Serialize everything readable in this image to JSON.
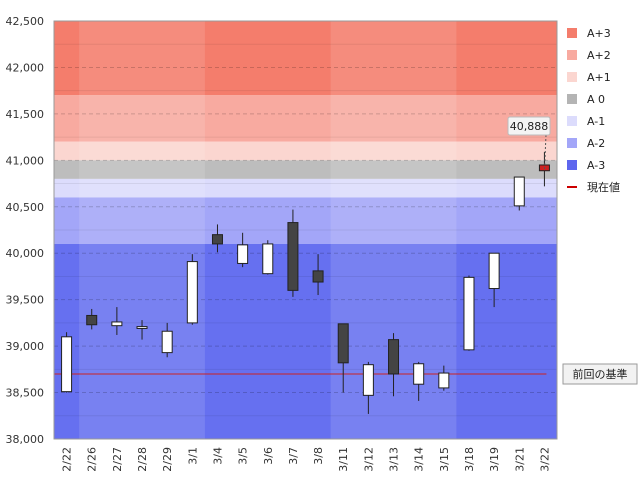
{
  "chart_data": {
    "type": "candlestick",
    "ylim": [
      38000,
      42500
    ],
    "yticks": [
      "38,000",
      "38,500",
      "39,000",
      "39,500",
      "40,000",
      "40,500",
      "41,000",
      "41,500",
      "42,000",
      "42,500"
    ],
    "yticks_values": [
      38000,
      38500,
      39000,
      39500,
      40000,
      40500,
      41000,
      41500,
      42000,
      42500
    ],
    "categories": [
      "2/22",
      "2/26",
      "2/27",
      "2/28",
      "2/29",
      "3/1",
      "3/4",
      "3/5",
      "3/6",
      "3/7",
      "3/8",
      "3/11",
      "3/12",
      "3/13",
      "3/14",
      "3/15",
      "3/18",
      "3/19",
      "3/21",
      "3/22"
    ],
    "candles": [
      {
        "date": "2/22",
        "open": 38510,
        "high": 39150,
        "low": 38500,
        "close": 39100
      },
      {
        "date": "2/26",
        "open": 39330,
        "high": 39400,
        "low": 39180,
        "close": 39230
      },
      {
        "date": "2/27",
        "open": 39220,
        "high": 39420,
        "low": 39120,
        "close": 39260
      },
      {
        "date": "2/28",
        "open": 39190,
        "high": 39280,
        "low": 39070,
        "close": 39210
      },
      {
        "date": "2/29",
        "open": 38930,
        "high": 39250,
        "low": 38880,
        "close": 39160
      },
      {
        "date": "3/1",
        "open": 39250,
        "high": 39990,
        "low": 39230,
        "close": 39910
      },
      {
        "date": "3/4",
        "open": 40200,
        "high": 40310,
        "low": 40010,
        "close": 40100
      },
      {
        "date": "3/5",
        "open": 39890,
        "high": 40220,
        "low": 39850,
        "close": 40090
      },
      {
        "date": "3/6",
        "open": 39780,
        "high": 40140,
        "low": 39770,
        "close": 40100
      },
      {
        "date": "3/7",
        "open": 40330,
        "high": 40470,
        "low": 39530,
        "close": 39600
      },
      {
        "date": "3/8",
        "open": 39810,
        "high": 39990,
        "low": 39550,
        "close": 39690
      },
      {
        "date": "3/11",
        "open": 39240,
        "high": 39240,
        "low": 38500,
        "close": 38820
      },
      {
        "date": "3/12",
        "open": 38470,
        "high": 38830,
        "low": 38270,
        "close": 38800
      },
      {
        "date": "3/13",
        "open": 39070,
        "high": 39140,
        "low": 38460,
        "close": 38700
      },
      {
        "date": "3/14",
        "open": 38590,
        "high": 38830,
        "low": 38410,
        "close": 38810
      },
      {
        "date": "3/15",
        "open": 38550,
        "high": 38790,
        "low": 38520,
        "close": 38710
      },
      {
        "date": "3/18",
        "open": 38960,
        "high": 39760,
        "low": 38950,
        "close": 39740
      },
      {
        "date": "3/19",
        "open": 39620,
        "high": 40000,
        "low": 39420,
        "close": 40000
      },
      {
        "date": "3/21",
        "open": 40510,
        "high": 40820,
        "low": 40460,
        "close": 40820
      },
      {
        "date": "3/22",
        "open": 40950,
        "high": 41090,
        "low": 40720,
        "close": 40888
      }
    ],
    "zones": [
      {
        "name": "A+3",
        "from": 41700,
        "to": 42500,
        "color": "#f47d6c"
      },
      {
        "name": "A+2",
        "from": 41200,
        "to": 41700,
        "color": "#f8aaa0"
      },
      {
        "name": "A+1",
        "from": 41000,
        "to": 41200,
        "color": "#fbd6d0"
      },
      {
        "name": "A 0",
        "from": 40800,
        "to": 41000,
        "color": "#bdbdbd"
      },
      {
        "name": "A-1",
        "from": 40600,
        "to": 40800,
        "color": "#dcdcfc"
      },
      {
        "name": "A-2",
        "from": 40100,
        "to": 40600,
        "color": "#a3a6f8"
      },
      {
        "name": "A-3",
        "from": 38000,
        "to": 40100,
        "color": "#6670f0"
      }
    ],
    "legend": [
      {
        "label": "A+3",
        "color": "#f47d6c"
      },
      {
        "label": "A+2",
        "color": "#f8aaa0"
      },
      {
        "label": "A+1",
        "color": "#fbd6d0"
      },
      {
        "label": "A 0",
        "color": "#b4b4b4"
      },
      {
        "label": "A-1",
        "color": "#dcdcfc"
      },
      {
        "label": "A-2",
        "color": "#a3a6f8"
      },
      {
        "label": "A-3",
        "color": "#5e66ee"
      },
      {
        "label": "現在値",
        "color": "#cc0000",
        "line": true
      }
    ],
    "reference_line": {
      "value": 38700,
      "label": "前回の基準",
      "color": "#cc2222"
    },
    "current_value_label": "40,888",
    "legend_position": "right",
    "grid": true
  }
}
